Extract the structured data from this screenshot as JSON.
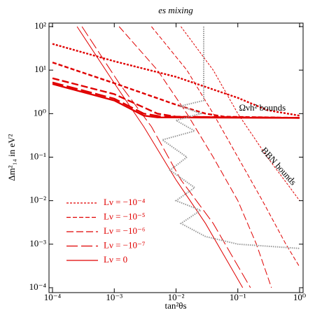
{
  "chart_data": {
    "type": "line",
    "title": "es mixing",
    "x_label": "tan²θs",
    "y_label": "Δm²₁₄ in eV²",
    "log_x": true,
    "log_y": true,
    "xlim": [
      0.0001,
      1
    ],
    "ylim": [
      0.0001,
      100
    ],
    "xticks": [
      {
        "value": 0.0001,
        "label": "10⁻⁴"
      },
      {
        "value": 0.001,
        "label": "10⁻³"
      },
      {
        "value": 0.01,
        "label": "10⁻²"
      },
      {
        "value": 0.1,
        "label": "10⁻¹"
      },
      {
        "value": 1,
        "label": "10⁰"
      }
    ],
    "yticks": [
      {
        "value": 0.0001,
        "label": "10⁻⁴"
      },
      {
        "value": 0.001,
        "label": "10⁻³"
      },
      {
        "value": 0.01,
        "label": "10⁻²"
      },
      {
        "value": 0.1,
        "label": "10⁻¹"
      },
      {
        "value": 1,
        "label": "10⁰"
      },
      {
        "value": 10,
        "label": "10¹"
      },
      {
        "value": 100,
        "label": "10²"
      }
    ],
    "annotations": [
      {
        "text": "Ωνh² bounds",
        "x": 0.25,
        "y": 1.3
      },
      {
        "text": "BBN bounds",
        "x": 0.45,
        "y": 0.06
      }
    ],
    "legend": "lower left",
    "series": [
      {
        "name": "Lν = −10⁻⁴",
        "color": "#e00000",
        "curves": [
          {
            "x": [
              0.0001,
              0.001,
              0.01,
              0.1,
              0.3,
              1
            ],
            "values": [
              40,
              16,
              7,
              2.3,
              1.2,
              0.9
            ]
          },
          {
            "x": [
              0.012,
              0.04,
              0.1,
              0.3,
              0.7,
              1
            ],
            "values": [
              100,
              10,
              1,
              0.1,
              0.02,
              0.01
            ]
          }
        ]
      },
      {
        "name": "Lν = −10⁻⁵",
        "color": "#e00000",
        "curves": [
          {
            "x": [
              0.0001,
              0.001,
              0.01,
              0.03,
              0.06,
              1
            ],
            "values": [
              15,
              5,
              1.6,
              1,
              0.85,
              0.8
            ]
          },
          {
            "x": [
              0.004,
              0.015,
              0.04,
              0.1,
              0.25,
              0.6,
              1
            ],
            "values": [
              100,
              10,
              1,
              0.1,
              0.01,
              0.001,
              0.0003
            ]
          }
        ]
      },
      {
        "name": "Lν = −10⁻⁶",
        "color": "#e00000",
        "curves": [
          {
            "x": [
              0.0001,
              0.001,
              0.005,
              0.01,
              1
            ],
            "values": [
              6.5,
              2.8,
              1,
              0.85,
              0.8
            ]
          },
          {
            "x": [
              0.0012,
              0.005,
              0.015,
              0.04,
              0.1,
              0.2,
              0.35
            ],
            "values": [
              100,
              10,
              1,
              0.1,
              0.01,
              0.001,
              0.0001
            ]
          }
        ]
      },
      {
        "name": "Lν = −10⁻⁷",
        "color": "#e00000",
        "curves": [
          {
            "x": [
              0.0001,
              0.001,
              0.003,
              0.006,
              1
            ],
            "values": [
              5.2,
              2.2,
              1,
              0.85,
              0.8
            ]
          },
          {
            "x": [
              0.0003,
              0.0012,
              0.004,
              0.012,
              0.04,
              0.16
            ],
            "values": [
              100,
              5,
              0.5,
              0.03,
              0.003,
              0.0001
            ]
          }
        ]
      },
      {
        "name": "Lν = 0",
        "color": "#e00000",
        "curves": [
          {
            "x": [
              0.0001,
              0.001,
              0.003,
              0.005,
              1
            ],
            "values": [
              4.8,
              2,
              0.9,
              0.82,
              0.8
            ]
          },
          {
            "x": [
              0.00025,
              0.001,
              0.003,
              0.01,
              0.03,
              0.12
            ],
            "values": [
              100,
              5,
              0.5,
              0.03,
              0.003,
              0.0001
            ]
          }
        ]
      },
      {
        "color": "#999999",
        "curves": [
          {
            "x": [
              0.028,
              0.028,
              0.012,
              0.025,
              0.01,
              0.02,
              0.006,
              0.015,
              0.008,
              0.02,
              0.01,
              0.025,
              0.012,
              0.03,
              0.1,
              1
            ],
            "values": [
              100,
              2,
              1.5,
              1,
              0.7,
              0.4,
              0.25,
              0.1,
              0.05,
              0.02,
              0.01,
              0.006,
              0.003,
              0.0015,
              0.001,
              0.0008
            ]
          }
        ]
      }
    ]
  }
}
